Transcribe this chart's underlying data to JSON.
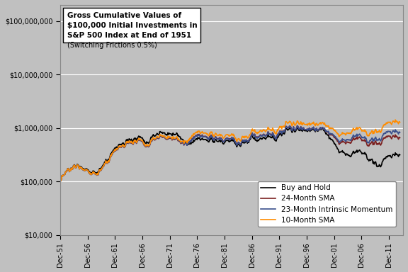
{
  "title_lines_bold": "Gross Cumulative Values of\n$100,000 Initial Investments in\nS&P 500 Index at End of 1951",
  "title_line_normal": "(Switching Frictions 0.5%)",
  "start_year": 1951,
  "end_year": 2013,
  "initial_value": 100000,
  "ylim_log": [
    10000,
    200000000
  ],
  "yticks": [
    10000,
    100000,
    1000000,
    10000000,
    100000000
  ],
  "ytick_labels": [
    "$10,000",
    "$100,000",
    "$1,000,000",
    "$10,000,000",
    "$100,000,000"
  ],
  "xtick_years": [
    1951,
    1956,
    1961,
    1966,
    1971,
    1976,
    1981,
    1986,
    1991,
    1996,
    2001,
    2006,
    2011
  ],
  "xtick_labels": [
    "Dec-51",
    "Dec-56",
    "Dec-61",
    "Dec-66",
    "Dec-71",
    "Dec-76",
    "Dec-81",
    "Dec-86",
    "Dec-91",
    "Dec-96",
    "Dec-01",
    "Dec-06",
    "Dec-11"
  ],
  "colors": {
    "buy_hold": "#000000",
    "sma24": "#7B2020",
    "intrinsic23": "#3A4F8C",
    "sma10": "#FF8C00"
  },
  "legend_labels": [
    "Buy and Hold",
    "24-Month SMA",
    "23-Month Intrinsic Momentum",
    "10-Month SMA"
  ],
  "background_color": "#C0C0C0",
  "plot_background": "#C0C0C0",
  "grid_color": "#FFFFFF"
}
